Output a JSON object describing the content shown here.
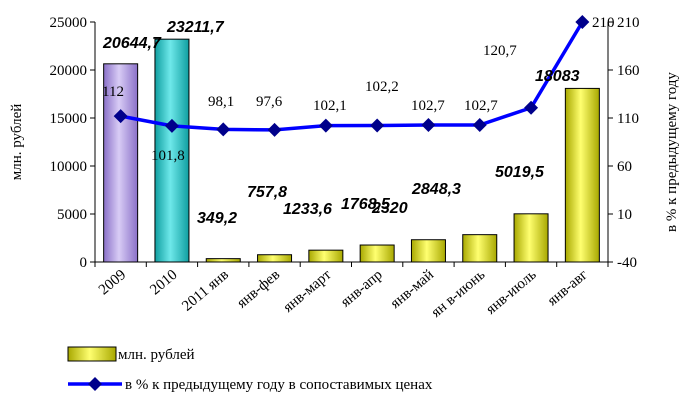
{
  "chart_data": {
    "type": "bar+line",
    "categories": [
      "2009",
      "2010",
      "2011 янв",
      "янв-фев",
      "янв-маpт",
      "янв-апр",
      "янв-май",
      "ян в-июнь",
      "янв-июль",
      "янв-авг"
    ],
    "series": [
      {
        "name": "млн. рублей",
        "type": "bar",
        "axis": "left",
        "values": [
          20644.7,
          23211.7,
          349.2,
          757.8,
          1233.6,
          1768.5,
          2320,
          2848.3,
          5019.5,
          18083
        ],
        "labels": [
          "20644,7",
          "23211,7",
          "349,2",
          "757,8",
          "1233,6",
          "1768,5",
          "2320",
          "2848,3",
          "5019,5",
          "18083"
        ],
        "colors": [
          "#b9a6e6",
          "#37c9cc",
          "#e6e600",
          "#e6e600",
          "#e6e600",
          "#e6e600",
          "#e6e600",
          "#e6e600",
          "#e6e600",
          "#e6e600"
        ]
      },
      {
        "name": "в % к предыдущему году в сопоставимых ценах",
        "type": "line",
        "axis": "right",
        "values": [
          112,
          101.8,
          98.1,
          97.6,
          102.1,
          102.2,
          102.7,
          102.7,
          120.7,
          210
        ],
        "labels": [
          "112",
          "101,8",
          "98,1",
          "97,6",
          "102,1",
          "102,2",
          "102,7",
          "102,7",
          "120,7",
          "210"
        ],
        "color": "#0000ff"
      }
    ],
    "y_left": {
      "label": "млн. рублей",
      "ylim": [
        0,
        25000
      ],
      "ticks": [
        0,
        5000,
        10000,
        15000,
        20000,
        25000
      ]
    },
    "y_right": {
      "label": "в % к предыдущему году",
      "ylim": [
        -40,
        210
      ],
      "ticks": [
        -40,
        10,
        60,
        110,
        160,
        210
      ]
    },
    "grid": false,
    "legend_position": "bottom-left"
  }
}
